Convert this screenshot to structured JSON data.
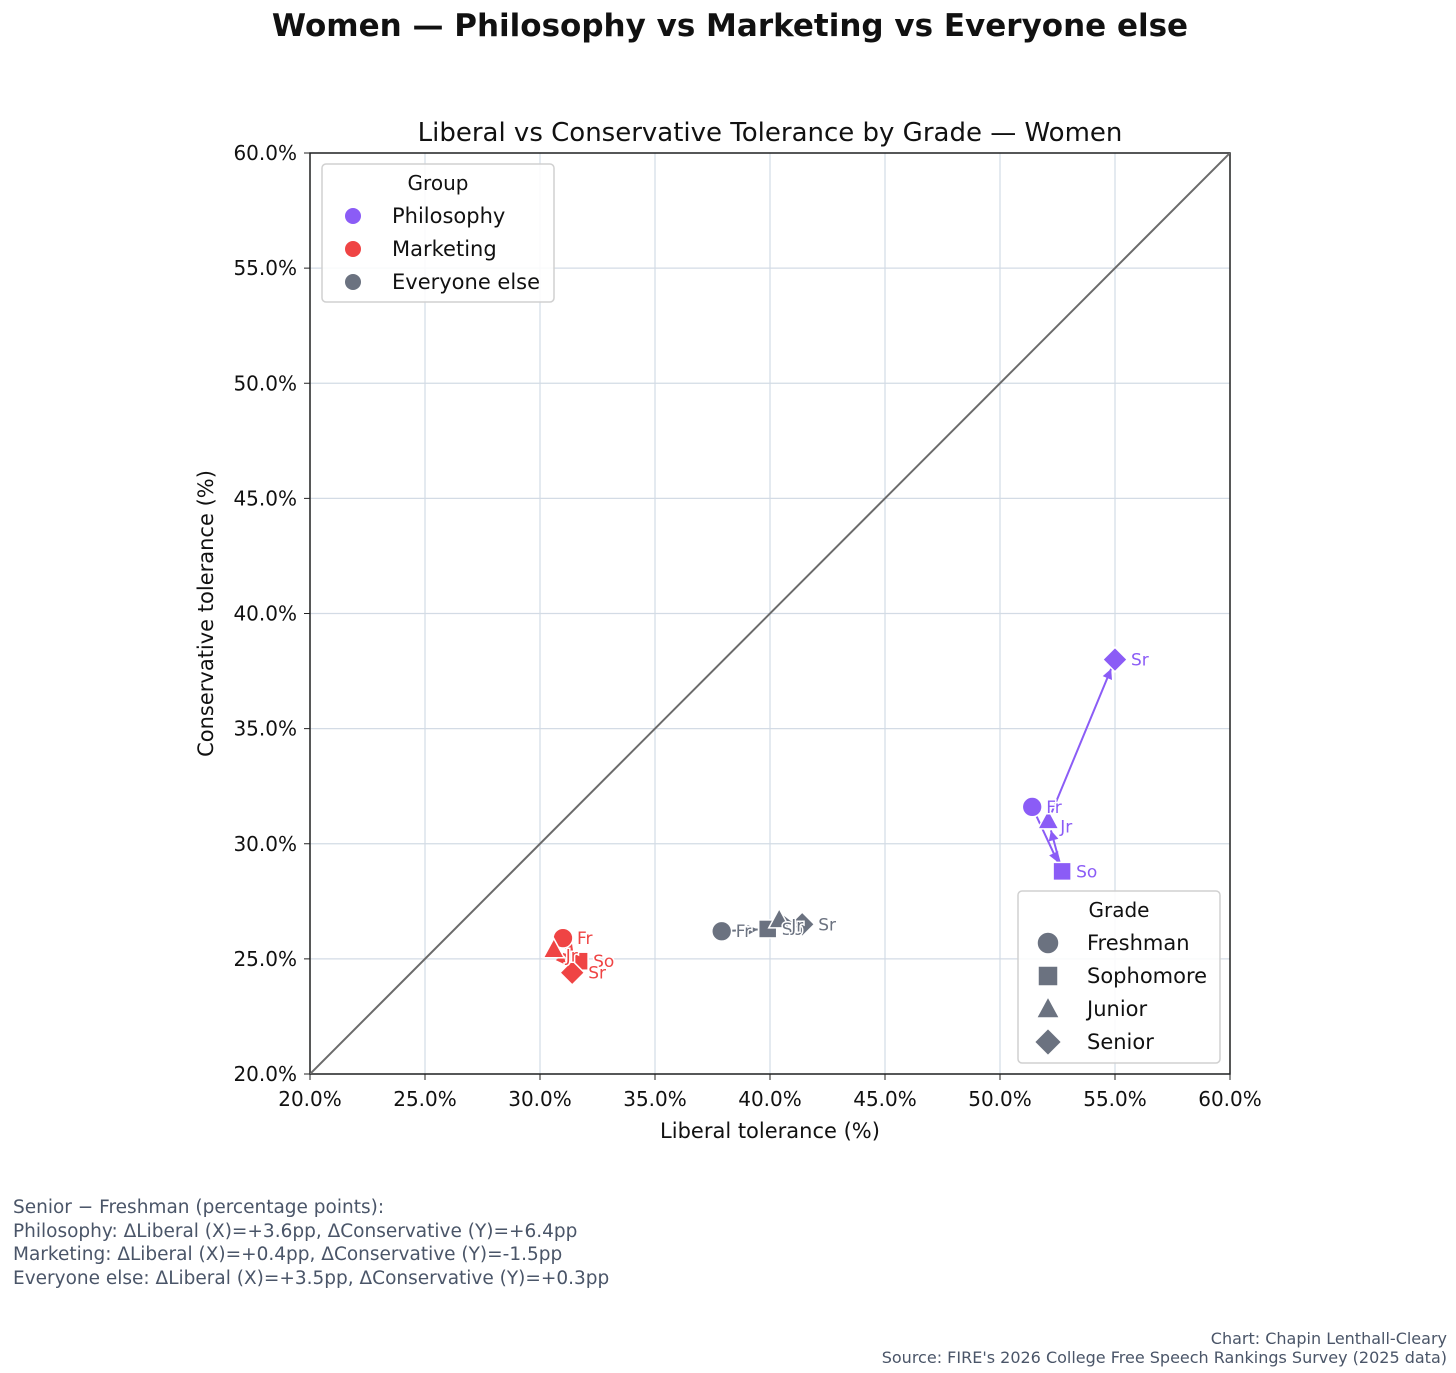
{
  "suptitle": "Women — Philosophy vs Marketing vs Everyone else",
  "chart_data": {
    "type": "scatter",
    "title": "Liberal vs Conservative Tolerance by Grade — Women",
    "xlabel": "Liberal tolerance (%)",
    "ylabel": "Conservative tolerance (%)",
    "xlim": [
      20,
      60
    ],
    "ylim": [
      20,
      60
    ],
    "xticks": [
      "20.0%",
      "25.0%",
      "30.0%",
      "35.0%",
      "40.0%",
      "45.0%",
      "50.0%",
      "55.0%",
      "60.0%"
    ],
    "yticks": [
      "20.0%",
      "25.0%",
      "30.0%",
      "35.0%",
      "40.0%",
      "45.0%",
      "50.0%",
      "55.0%",
      "60.0%"
    ],
    "grid": true,
    "diagonal": "y = x reference line",
    "grades": [
      "Freshman",
      "Sophomore",
      "Junior",
      "Senior"
    ],
    "grade_abbrev": [
      "Fr",
      "So",
      "Jr",
      "Sr"
    ],
    "series": [
      {
        "name": "Philosophy",
        "color": "#8b5cf6",
        "x": [
          51.4,
          52.7,
          52.1,
          55.0
        ],
        "y": [
          31.6,
          28.8,
          31.0,
          38.0
        ]
      },
      {
        "name": "Marketing",
        "color": "#ef4444",
        "x": [
          31.0,
          31.7,
          30.6,
          31.4
        ],
        "y": [
          25.9,
          24.9,
          25.4,
          24.4
        ]
      },
      {
        "name": "Everyone else",
        "color": "#6b7280",
        "x": [
          37.9,
          39.9,
          40.4,
          41.4
        ],
        "y": [
          26.2,
          26.3,
          26.7,
          26.5
        ]
      }
    ],
    "legend_group": {
      "title": "Group",
      "entries": [
        "Philosophy",
        "Marketing",
        "Everyone else"
      ],
      "location": "upper-left"
    },
    "legend_grade": {
      "title": "Grade",
      "entries": [
        "Freshman",
        "Sophomore",
        "Junior",
        "Senior"
      ],
      "location": "lower-right"
    }
  },
  "notes": [
    "Senior − Freshman (percentage points):",
    "Philosophy: ΔLiberal (X)=+3.6pp, ΔConservative (Y)=+6.4pp",
    "Marketing: ΔLiberal (X)=+0.4pp, ΔConservative (Y)=-1.5pp",
    "Everyone else: ΔLiberal (X)=+3.5pp, ΔConservative (Y)=+0.3pp"
  ],
  "credit": {
    "author": "Chart: Chapin Lenthall-Cleary",
    "source": "Source: FIRE's 2026 College Free Speech Rankings Survey (2025 data)"
  }
}
